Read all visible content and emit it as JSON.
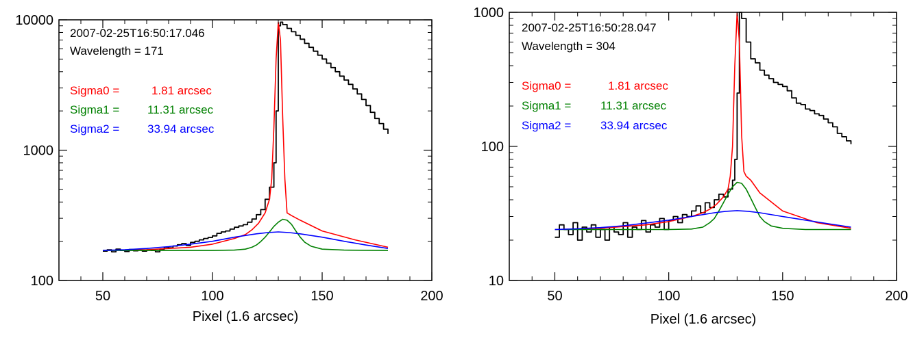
{
  "chart_data": [
    {
      "type": "line",
      "title": "",
      "xlabel": "Pixel (1.6 arcsec)",
      "ylabel": "",
      "xlim": [
        30,
        200
      ],
      "ylim": [
        100,
        10000
      ],
      "yscale": "log",
      "xticks": [
        50,
        100,
        150,
        200
      ],
      "xtick_labels": [
        "50",
        "100",
        "150",
        "200"
      ],
      "yticks": [
        100,
        1000,
        10000
      ],
      "ytick_labels": [
        "100",
        "1000",
        "10000"
      ],
      "annotations": {
        "timestamp": "2007-02-25T16:50:17.046",
        "wavelength": "Wavelength = 171",
        "sigma0_label": "Sigma0 =",
        "sigma0_value": "1.81 arcsec",
        "sigma1_label": "Sigma1 =",
        "sigma1_value": "11.31 arcsec",
        "sigma2_label": "Sigma2 =",
        "sigma2_value": "33.94 arcsec"
      },
      "colors": {
        "data": "#000000",
        "sigma0": "#ff0000",
        "sigma1": "#008000",
        "sigma2": "#0000ff"
      },
      "series": [
        {
          "key": "data",
          "step": true,
          "x": [
            50,
            52,
            54,
            56,
            58,
            60,
            62,
            64,
            66,
            68,
            70,
            72,
            74,
            76,
            78,
            80,
            82,
            84,
            86,
            88,
            90,
            92,
            94,
            96,
            98,
            100,
            102,
            104,
            106,
            108,
            110,
            112,
            114,
            116,
            118,
            120,
            122,
            124,
            126,
            128,
            129,
            130,
            131,
            132,
            134,
            136,
            138,
            140,
            142,
            144,
            146,
            148,
            150,
            152,
            154,
            156,
            158,
            160,
            162,
            164,
            166,
            168,
            170,
            172,
            174,
            176,
            178,
            180
          ],
          "y": [
            168,
            172,
            166,
            174,
            170,
            167,
            173,
            169,
            171,
            168,
            172,
            170,
            166,
            174,
            180,
            178,
            184,
            188,
            192,
            186,
            196,
            200,
            205,
            210,
            214,
            220,
            230,
            236,
            240,
            248,
            256,
            262,
            268,
            280,
            296,
            320,
            350,
            420,
            520,
            800,
            2000,
            9000,
            9600,
            9200,
            8600,
            8100,
            7600,
            7100,
            6600,
            6150,
            5750,
            5350,
            5000,
            4650,
            4300,
            4000,
            3700,
            3450,
            3200,
            2950,
            2700,
            2450,
            2200,
            1950,
            1750,
            1600,
            1450,
            1330
          ]
        },
        {
          "key": "sigma0",
          "x": [
            50,
            70,
            90,
            100,
            110,
            115,
            118,
            121,
            124,
            126,
            127,
            128,
            129,
            130,
            131,
            132,
            133,
            134,
            136,
            140,
            150,
            165,
            180
          ],
          "y": [
            170,
            172,
            180,
            190,
            210,
            225,
            245,
            275,
            330,
            420,
            600,
            1500,
            5000,
            9600,
            7000,
            1800,
            600,
            330,
            315,
            290,
            240,
            205,
            180
          ]
        },
        {
          "key": "sigma1",
          "x": [
            50,
            100,
            110,
            115,
            118,
            120,
            122,
            124,
            126,
            128,
            130,
            132,
            134,
            136,
            138,
            140,
            142,
            145,
            150,
            160,
            180
          ],
          "y": [
            170,
            170,
            171,
            174,
            180,
            187,
            199,
            215,
            236,
            260,
            280,
            295,
            290,
            270,
            240,
            215,
            197,
            183,
            174,
            171,
            170
          ]
        },
        {
          "key": "sigma2",
          "x": [
            50,
            60,
            70,
            80,
            90,
            100,
            110,
            120,
            125,
            130,
            135,
            140,
            150,
            160,
            170,
            180
          ],
          "y": [
            170,
            172,
            176,
            182,
            190,
            200,
            215,
            228,
            233,
            236,
            233,
            228,
            215,
            200,
            187,
            176
          ]
        }
      ]
    },
    {
      "type": "line",
      "title": "",
      "xlabel": "Pixel (1.6 arcsec)",
      "ylabel": "",
      "xlim": [
        30,
        200
      ],
      "ylim": [
        10,
        1000
      ],
      "yscale": "log",
      "xticks": [
        50,
        100,
        150,
        200
      ],
      "xtick_labels": [
        "50",
        "100",
        "150",
        "200"
      ],
      "yticks": [
        10,
        100,
        1000
      ],
      "ytick_labels": [
        "10",
        "100",
        "1000"
      ],
      "annotations": {
        "timestamp": "2007-02-25T16:50:28.047",
        "wavelength": "Wavelength = 304",
        "sigma0_label": "Sigma0 =",
        "sigma0_value": "1.81 arcsec",
        "sigma1_label": "Sigma1 =",
        "sigma1_value": "11.31 arcsec",
        "sigma2_label": "Sigma2 =",
        "sigma2_value": "33.94 arcsec"
      },
      "colors": {
        "data": "#000000",
        "sigma0": "#ff0000",
        "sigma1": "#008000",
        "sigma2": "#0000ff"
      },
      "series": [
        {
          "key": "data",
          "step": true,
          "x": [
            50,
            52,
            54,
            56,
            58,
            60,
            62,
            64,
            66,
            68,
            70,
            72,
            74,
            76,
            78,
            80,
            82,
            84,
            86,
            88,
            90,
            92,
            94,
            96,
            98,
            100,
            102,
            104,
            106,
            108,
            110,
            112,
            114,
            116,
            118,
            120,
            122,
            124,
            126,
            128,
            129,
            130,
            131,
            132,
            134,
            136,
            138,
            140,
            142,
            144,
            146,
            148,
            150,
            152,
            154,
            156,
            158,
            160,
            162,
            164,
            166,
            168,
            170,
            172,
            174,
            176,
            178,
            180
          ],
          "y": [
            21,
            26,
            24,
            22,
            27,
            20,
            25,
            23,
            26,
            21,
            24,
            20,
            25,
            23,
            22,
            27,
            21,
            25,
            24,
            28,
            23,
            26,
            25,
            29,
            24,
            28,
            30,
            27,
            31,
            30,
            33,
            36,
            32,
            38,
            35,
            40,
            44,
            42,
            48,
            56,
            80,
            250,
            1000,
            900,
            600,
            450,
            420,
            370,
            340,
            320,
            300,
            290,
            280,
            260,
            230,
            210,
            205,
            190,
            185,
            175,
            170,
            160,
            150,
            140,
            125,
            118,
            110,
            104
          ]
        },
        {
          "key": "sigma0",
          "x": [
            50,
            70,
            90,
            100,
            110,
            115,
            118,
            121,
            124,
            126,
            127,
            128,
            129,
            130,
            131,
            132,
            133,
            134,
            136,
            140,
            150,
            165,
            180
          ],
          "y": [
            24,
            24.5,
            26,
            27.5,
            30,
            32,
            34,
            37,
            42,
            48,
            60,
            100,
            400,
            1000,
            600,
            120,
            65,
            60,
            56,
            45,
            33,
            27,
            24.5
          ]
        },
        {
          "key": "sigma1",
          "x": [
            50,
            100,
            110,
            115,
            118,
            120,
            122,
            124,
            126,
            128,
            130,
            132,
            134,
            136,
            138,
            140,
            142,
            145,
            150,
            160,
            180
          ],
          "y": [
            24,
            24,
            24.2,
            25,
            27,
            29,
            33,
            38,
            44,
            50,
            54,
            53,
            48,
            41,
            35,
            30,
            27.5,
            25.5,
            24.5,
            24,
            24
          ]
        },
        {
          "key": "sigma2",
          "x": [
            50,
            60,
            70,
            80,
            90,
            100,
            110,
            120,
            125,
            130,
            135,
            140,
            150,
            160,
            170,
            180
          ],
          "y": [
            24,
            24.3,
            24.8,
            25.6,
            26.8,
            28.2,
            30,
            32,
            32.8,
            33.2,
            32.8,
            32,
            30,
            28.2,
            26.5,
            25
          ]
        }
      ]
    }
  ]
}
